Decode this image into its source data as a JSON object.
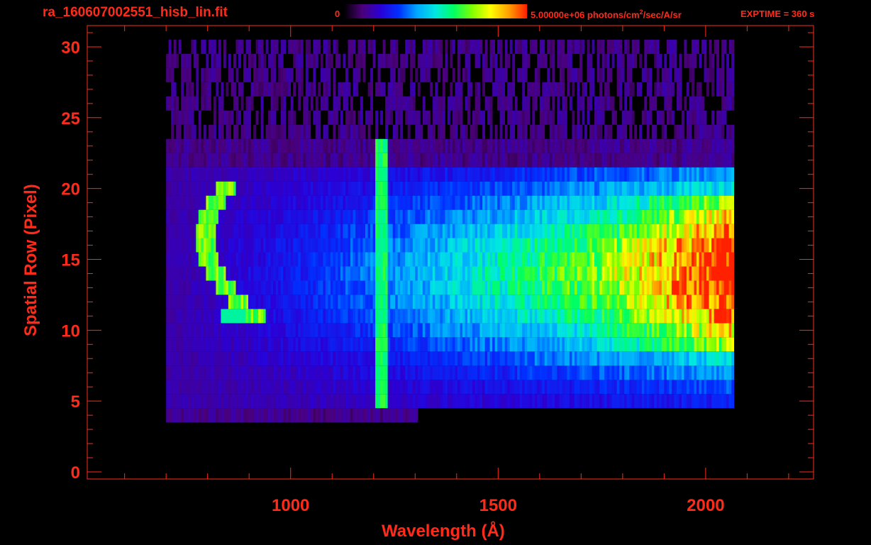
{
  "header": {
    "filename": "ra_160607002551_hisb_lin.fit",
    "colorbar_min": "0",
    "colorbar_max_unit": "5.00000e+06 photons/cm",
    "colorbar_unit_sup": "2",
    "colorbar_unit_tail": "/sec/A/sr",
    "exptime": "EXPTIME = 360 s"
  },
  "colors": {
    "axis": "#ff2a1a",
    "background": "#000000",
    "colormap": [
      "#000000",
      "#4b007a",
      "#2a00d6",
      "#0030ff",
      "#00a8ff",
      "#00e8e0",
      "#00ff60",
      "#80ff00",
      "#ffff00",
      "#ffa000",
      "#ff2000"
    ]
  },
  "chart_data": {
    "type": "heatmap",
    "title": "",
    "xlabel": "Wavelength (Å)",
    "ylabel": "Spatial Row (Pixel)",
    "xlim": [
      510,
      2260
    ],
    "ylim": [
      -0.5,
      31.5
    ],
    "xticks": [
      1000,
      1500,
      2000
    ],
    "yticks": [
      0,
      5,
      10,
      15,
      20,
      25,
      30
    ],
    "colorbar_range": [
      0,
      5000000
    ],
    "data_extent_x": [
      700,
      2065
    ],
    "rows_with_signal": [
      4,
      30
    ],
    "features": [
      {
        "name": "arc",
        "x_center": 860,
        "rows": [
          11,
          20
        ]
      },
      {
        "name": "line",
        "x": 1216,
        "rows": [
          5,
          23
        ]
      },
      {
        "name": "bright-band",
        "x_range": [
          1800,
          2065
        ],
        "rows": [
          8,
          19
        ]
      }
    ]
  }
}
